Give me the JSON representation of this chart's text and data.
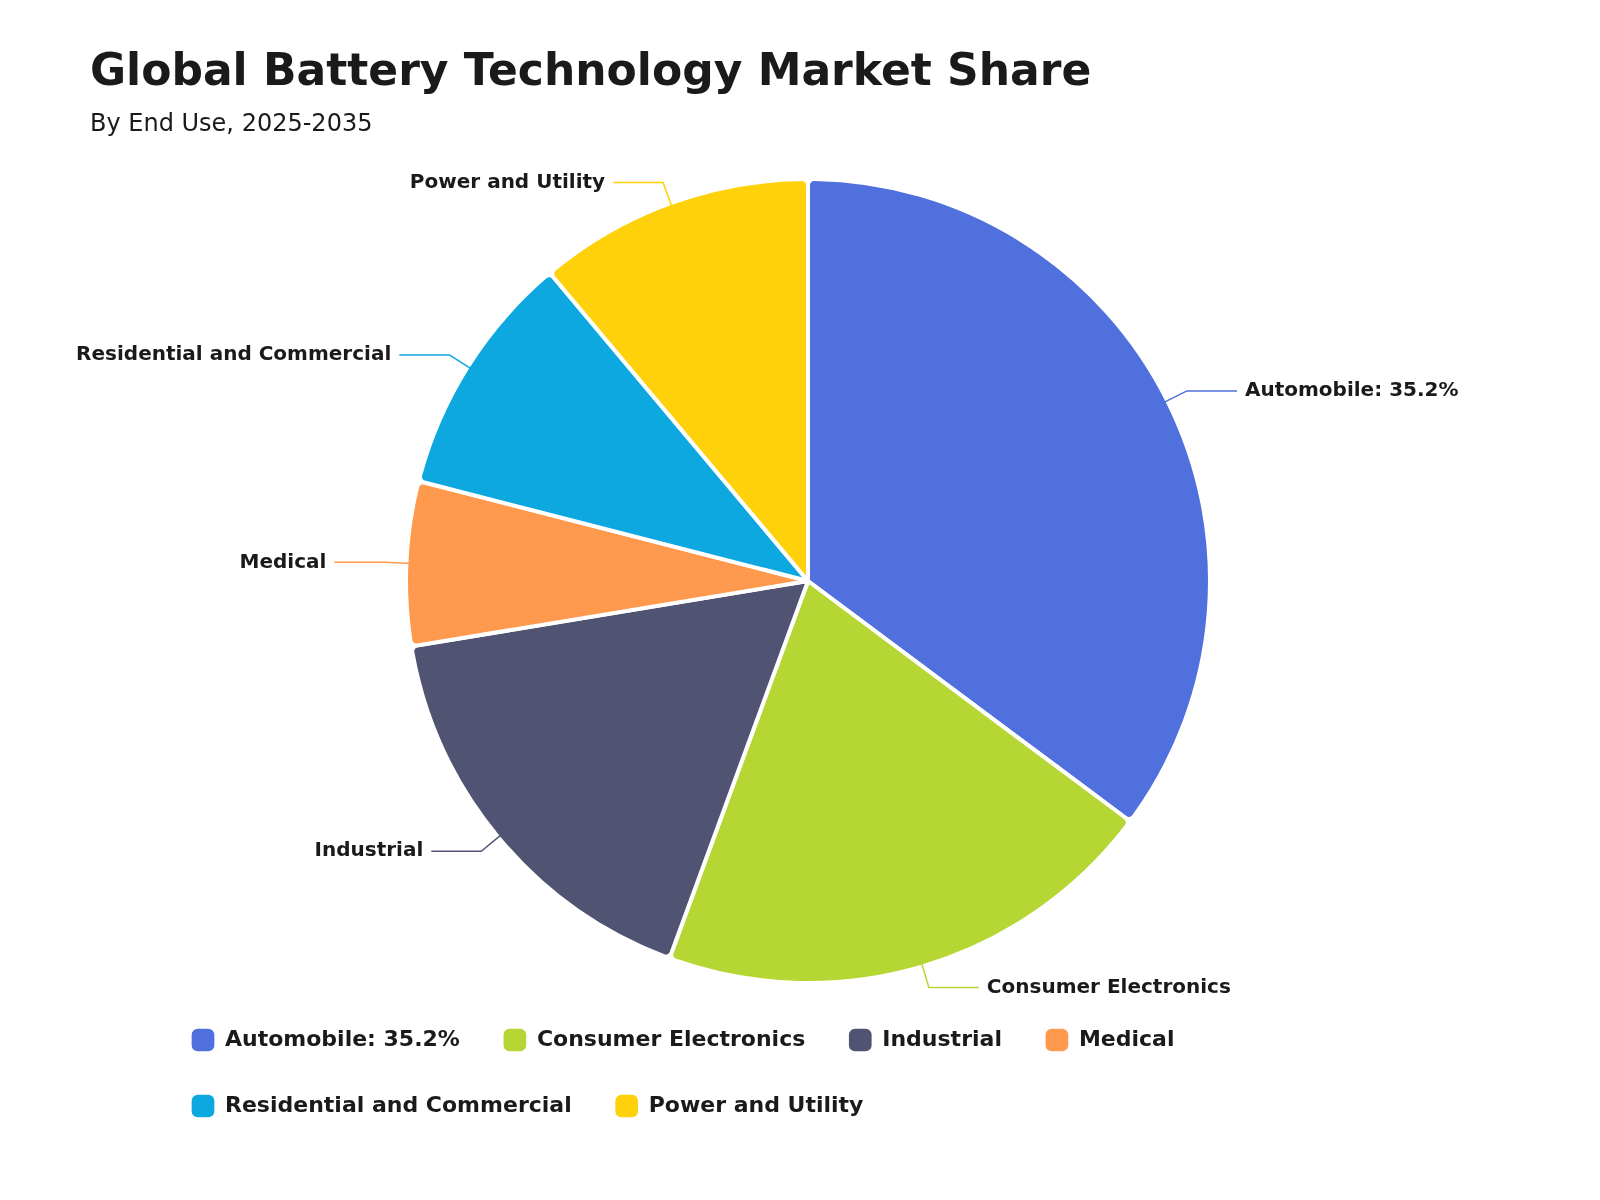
{
  "chart_data": {
    "type": "pie",
    "title": "Global Battery Technology Market Share",
    "subtitle": "By End Use, 2025-2035",
    "categories": [
      "Automobile: 35.2%",
      "Consumer Electronics",
      "Industrial",
      "Medical",
      "Residential and Commercial",
      "Power and Utility"
    ],
    "values": [
      35.2,
      20.4,
      16.8,
      6.6,
      9.9,
      11.1
    ],
    "colors": [
      "#5070dd",
      "#b6d634",
      "#505372",
      "#ff994d",
      "#0ca8df",
      "#ffd10a"
    ],
    "legend": "bottom"
  }
}
